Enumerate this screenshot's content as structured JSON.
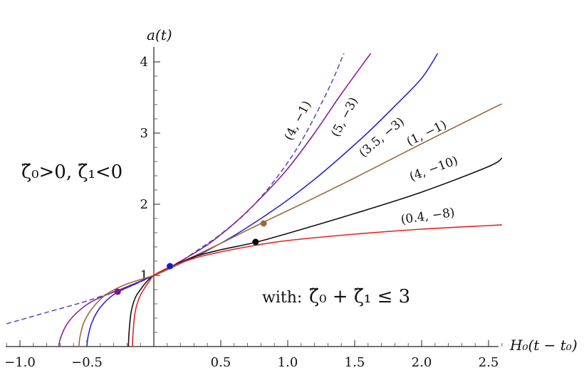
{
  "chart_data": {
    "type": "line",
    "xlabel": "H₀(t − t₀)",
    "ylabel": "a(t)",
    "xlim": [
      -1.1,
      2.6
    ],
    "ylim": [
      0,
      4.1
    ],
    "x_ticks": [
      "−1.0",
      "−0.5",
      "0.5",
      "1.0",
      "1.5",
      "2.0",
      "2.5"
    ],
    "y_ticks": [
      "1",
      "2",
      "3",
      "4"
    ],
    "annotations": {
      "condition": "ζ̃₀>0,  ζ̃₁<0",
      "constraint_prefix": "with:",
      "constraint": "ζ̃₀ + ζ̃₁ ≤ 3"
    },
    "series": [
      {
        "name": "(4, −1)",
        "color": "#5555bb",
        "dashed": true,
        "label_at": [
          1.1,
          3.15
        ],
        "label_rotate": -62,
        "x": [
          -1.1,
          -0.8,
          -0.5,
          -0.3,
          -0.2,
          -0.1,
          0.0,
          0.1,
          0.2,
          0.3,
          0.5,
          0.7,
          0.9,
          1.1,
          1.3,
          1.42
        ],
        "y": [
          0.32,
          0.48,
          0.64,
          0.77,
          0.83,
          0.91,
          1.0,
          1.1,
          1.2,
          1.32,
          1.58,
          1.9,
          2.33,
          2.88,
          3.6,
          4.12
        ]
      },
      {
        "name": "(5, −3)",
        "color": "#8a1f9a",
        "dashed": false,
        "label_at": [
          1.45,
          3.2
        ],
        "label_rotate": -62,
        "x": [
          -0.71,
          -0.7,
          -0.66,
          -0.6,
          -0.5,
          -0.4,
          -0.28,
          -0.15,
          0.0,
          0.1,
          0.2,
          0.4,
          0.6,
          0.8,
          1.0,
          1.2,
          1.4,
          1.62
        ],
        "y": [
          0.0,
          0.1,
          0.28,
          0.43,
          0.59,
          0.69,
          0.78,
          0.88,
          1.0,
          1.09,
          1.2,
          1.43,
          1.73,
          2.09,
          2.5,
          3.0,
          3.55,
          4.12
        ]
      },
      {
        "name": "(3.5, −3)",
        "color": "#2828cc",
        "dashed": false,
        "label_at": [
          1.72,
          2.9
        ],
        "label_rotate": -40,
        "x": [
          -0.5,
          -0.49,
          -0.46,
          -0.4,
          -0.3,
          -0.15,
          0.0,
          0.1,
          0.2,
          0.4,
          0.6,
          0.8,
          1.0,
          1.2,
          1.4,
          1.6,
          1.8,
          2.0,
          2.12
        ],
        "y": [
          0.0,
          0.15,
          0.35,
          0.55,
          0.73,
          0.87,
          1.0,
          1.08,
          1.17,
          1.35,
          1.56,
          1.8,
          2.06,
          2.35,
          2.67,
          3.01,
          3.38,
          3.77,
          4.12
        ]
      },
      {
        "name": "(1, −1)",
        "color": "#9a6b3a",
        "dashed": false,
        "label_at": [
          2.05,
          2.95
        ],
        "label_rotate": -26,
        "x": [
          -0.56,
          -0.55,
          -0.52,
          -0.45,
          -0.35,
          -0.2,
          0.0,
          0.1,
          0.3,
          0.5,
          0.8,
          1.1,
          1.5,
          2.0,
          2.5,
          2.6
        ],
        "y": [
          0.0,
          0.15,
          0.35,
          0.56,
          0.74,
          0.88,
          1.0,
          1.08,
          1.27,
          1.45,
          1.73,
          2.0,
          2.37,
          2.85,
          3.32,
          3.41
        ]
      },
      {
        "name": "(4, −10)",
        "color": "#111111",
        "dashed": false,
        "label_at": [
          2.1,
          2.45
        ],
        "label_rotate": -20,
        "x": [
          -0.19,
          -0.185,
          -0.17,
          -0.14,
          -0.1,
          -0.05,
          0.0,
          0.1,
          0.3,
          0.5,
          0.75,
          1.0,
          1.5,
          2.0,
          2.5,
          2.6
        ],
        "y": [
          0.0,
          0.2,
          0.48,
          0.68,
          0.8,
          0.92,
          1.0,
          1.1,
          1.26,
          1.36,
          1.46,
          1.59,
          1.87,
          2.17,
          2.53,
          2.65
        ]
      },
      {
        "name": "(0.4, −8)",
        "color": "#e82020",
        "dashed": false,
        "label_at": [
          2.05,
          1.78
        ],
        "label_rotate": -8,
        "x": [
          -0.16,
          -0.155,
          -0.14,
          -0.11,
          -0.07,
          -0.03,
          0.0,
          0.1,
          0.3,
          0.5,
          0.75,
          1.0,
          1.5,
          2.0,
          2.5,
          2.6
        ],
        "y": [
          0.0,
          0.2,
          0.48,
          0.68,
          0.82,
          0.93,
          1.0,
          1.1,
          1.24,
          1.33,
          1.42,
          1.49,
          1.58,
          1.65,
          1.7,
          1.71
        ]
      }
    ],
    "markers": [
      {
        "x": -0.27,
        "y": 0.77,
        "color": "#7a1a8a"
      },
      {
        "x": 0.12,
        "y": 1.13,
        "color": "#1a1acc"
      },
      {
        "x": 0.82,
        "y": 1.73,
        "color": "#9a6b3a"
      },
      {
        "x": 0.76,
        "y": 1.47,
        "color": "#000000"
      }
    ]
  }
}
